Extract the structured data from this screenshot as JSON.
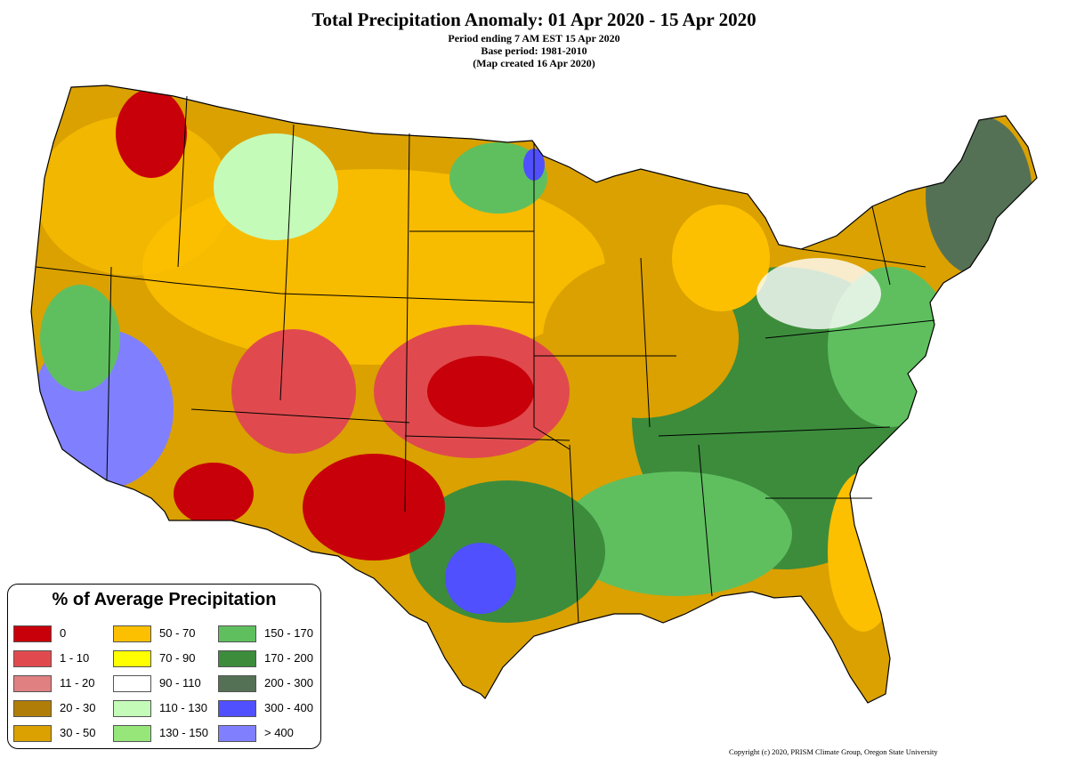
{
  "title": "Total Precipitation Anomaly: 01 Apr 2020 - 15 Apr 2020",
  "subtitle_lines": [
    "Period ending 7 AM EST 15 Apr 2020",
    "Base period: 1981-2010",
    "(Map created 16 Apr 2020)"
  ],
  "legend": {
    "title": "% of Average Precipitation",
    "entries": [
      {
        "label": "0",
        "color": "#c8000a"
      },
      {
        "label": "1 - 10",
        "color": "#e04a4e"
      },
      {
        "label": "11 - 20",
        "color": "#e08080"
      },
      {
        "label": "20 - 30",
        "color": "#b07e08"
      },
      {
        "label": "30 - 50",
        "color": "#daa100"
      },
      {
        "label": "50 - 70",
        "color": "#fcc000"
      },
      {
        "label": "70 - 90",
        "color": "#ffff00"
      },
      {
        "label": "90 - 110",
        "color": "#ffffff"
      },
      {
        "label": "110 - 130",
        "color": "#c4fbb8"
      },
      {
        "label": "130 - 150",
        "color": "#96e67a"
      },
      {
        "label": "150 - 170",
        "color": "#5fbf5f"
      },
      {
        "label": "170 - 200",
        "color": "#3c8c3c"
      },
      {
        "label": "200 - 300",
        "color": "#557155"
      },
      {
        "label": "300 - 400",
        "color": "#5050ff"
      },
      {
        "label": "> 400",
        "color": "#8080ff"
      }
    ]
  },
  "copyright": "Copyright (c) 2020, PRISM Climate Group, Oregon State University"
}
